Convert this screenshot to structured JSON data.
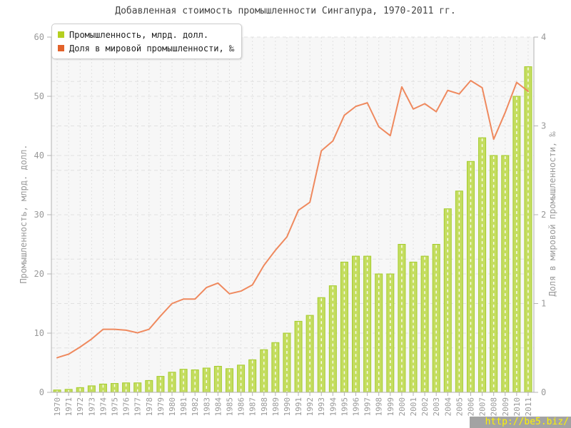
{
  "watermark": "http://be5.biz/",
  "chart_data": {
    "type": "bar",
    "title": "Добавленная стоимость промышленности Сингапура, 1970-2011 гг.",
    "categories": [
      "1970",
      "1971",
      "1972",
      "1973",
      "1974",
      "1975",
      "1976",
      "1977",
      "1978",
      "1979",
      "1980",
      "1981",
      "1982",
      "1983",
      "1984",
      "1985",
      "1986",
      "1987",
      "1988",
      "1989",
      "1990",
      "1991",
      "1992",
      "1993",
      "1994",
      "1995",
      "1996",
      "1997",
      "1998",
      "1999",
      "2000",
      "2001",
      "2002",
      "2003",
      "2004",
      "2005",
      "2006",
      "2007",
      "2008",
      "2009",
      "2010",
      "2011"
    ],
    "series": [
      {
        "name": "Промышленность, млрд. долл.",
        "type": "bar",
        "axis": "left",
        "values": [
          0.4,
          0.5,
          0.8,
          1.1,
          1.4,
          1.5,
          1.6,
          1.6,
          2.0,
          2.7,
          3.4,
          3.9,
          3.8,
          4.1,
          4.4,
          4.0,
          4.6,
          5.5,
          7.2,
          8.4,
          10,
          12,
          13,
          16,
          18,
          22,
          23,
          23,
          20,
          20,
          25,
          22,
          23,
          25,
          31,
          34,
          39,
          43,
          40,
          40,
          50,
          55
        ]
      },
      {
        "name": "Доля в мировой промышленности, ‰",
        "type": "line",
        "axis": "right",
        "values": [
          0.39,
          0.43,
          0.51,
          0.6,
          0.71,
          0.71,
          0.7,
          0.67,
          0.71,
          0.86,
          1.0,
          1.05,
          1.05,
          1.18,
          1.23,
          1.11,
          1.14,
          1.21,
          1.43,
          1.6,
          1.75,
          2.05,
          2.14,
          2.72,
          2.83,
          3.12,
          3.22,
          3.26,
          2.99,
          2.89,
          3.44,
          3.19,
          3.25,
          3.16,
          3.4,
          3.36,
          3.51,
          3.43,
          2.85,
          3.15,
          3.49,
          3.39
        ]
      }
    ],
    "left_axis": {
      "label": "Промышленность, млрд. долл.",
      "ticks": [
        0,
        10,
        20,
        30,
        40,
        50,
        60
      ],
      "range": [
        0,
        60
      ]
    },
    "right_axis": {
      "label": "Доля в мировой промышленности, ‰",
      "ticks": [
        0,
        1,
        2,
        3,
        4
      ],
      "range": [
        0,
        4
      ],
      "grid_step": 0.5
    },
    "grid": "dashed",
    "legend_position": "top-left",
    "colors": {
      "bar_fill": "#c4dd5f",
      "bar_border": "#a5cc2e",
      "bar_center_dash": "#ffffff",
      "line": "#ee8355",
      "legend_bar_marker": "#b5cf20",
      "legend_line_marker": "#e2622a",
      "grid": "#e0e0e0",
      "axis": "#b3b3b3",
      "tick_text": "#999999",
      "title_text": "#444444",
      "plot_bg": "#f7f7f7"
    }
  }
}
